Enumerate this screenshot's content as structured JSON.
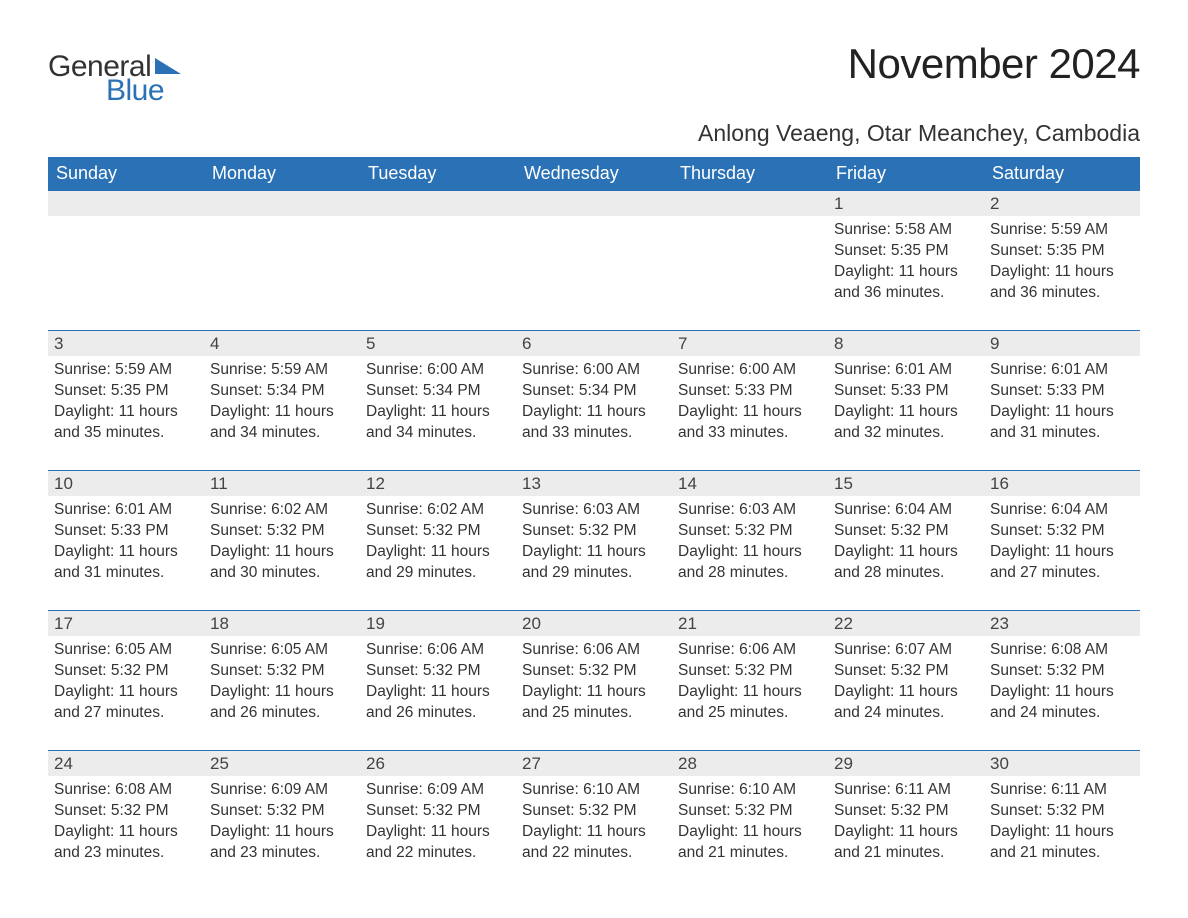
{
  "brand": {
    "word1": "General",
    "word2": "Blue"
  },
  "title": "November 2024",
  "location": "Anlong Veaeng, Otar Meanchey, Cambodia",
  "colors": {
    "header_bg": "#2a72b5",
    "header_text": "#ffffff",
    "daynum_bg": "#ececec",
    "border_top": "#2a72b5",
    "text": "#333333",
    "background": "#ffffff"
  },
  "typography": {
    "title_fontsize": 42,
    "location_fontsize": 23,
    "header_fontsize": 18,
    "daynum_fontsize": 17,
    "body_fontsize": 15.5
  },
  "layout": {
    "columns": 7,
    "rows": 5,
    "week_starts": "Sunday"
  },
  "weekdays": [
    "Sunday",
    "Monday",
    "Tuesday",
    "Wednesday",
    "Thursday",
    "Friday",
    "Saturday"
  ],
  "weeks": [
    [
      {
        "empty": true
      },
      {
        "empty": true
      },
      {
        "empty": true
      },
      {
        "empty": true
      },
      {
        "empty": true
      },
      {
        "n": "1",
        "sunrise": "Sunrise: 5:58 AM",
        "sunset": "Sunset: 5:35 PM",
        "daylight": "Daylight: 11 hours and 36 minutes."
      },
      {
        "n": "2",
        "sunrise": "Sunrise: 5:59 AM",
        "sunset": "Sunset: 5:35 PM",
        "daylight": "Daylight: 11 hours and 36 minutes."
      }
    ],
    [
      {
        "n": "3",
        "sunrise": "Sunrise: 5:59 AM",
        "sunset": "Sunset: 5:35 PM",
        "daylight": "Daylight: 11 hours and 35 minutes."
      },
      {
        "n": "4",
        "sunrise": "Sunrise: 5:59 AM",
        "sunset": "Sunset: 5:34 PM",
        "daylight": "Daylight: 11 hours and 34 minutes."
      },
      {
        "n": "5",
        "sunrise": "Sunrise: 6:00 AM",
        "sunset": "Sunset: 5:34 PM",
        "daylight": "Daylight: 11 hours and 34 minutes."
      },
      {
        "n": "6",
        "sunrise": "Sunrise: 6:00 AM",
        "sunset": "Sunset: 5:34 PM",
        "daylight": "Daylight: 11 hours and 33 minutes."
      },
      {
        "n": "7",
        "sunrise": "Sunrise: 6:00 AM",
        "sunset": "Sunset: 5:33 PM",
        "daylight": "Daylight: 11 hours and 33 minutes."
      },
      {
        "n": "8",
        "sunrise": "Sunrise: 6:01 AM",
        "sunset": "Sunset: 5:33 PM",
        "daylight": "Daylight: 11 hours and 32 minutes."
      },
      {
        "n": "9",
        "sunrise": "Sunrise: 6:01 AM",
        "sunset": "Sunset: 5:33 PM",
        "daylight": "Daylight: 11 hours and 31 minutes."
      }
    ],
    [
      {
        "n": "10",
        "sunrise": "Sunrise: 6:01 AM",
        "sunset": "Sunset: 5:33 PM",
        "daylight": "Daylight: 11 hours and 31 minutes."
      },
      {
        "n": "11",
        "sunrise": "Sunrise: 6:02 AM",
        "sunset": "Sunset: 5:32 PM",
        "daylight": "Daylight: 11 hours and 30 minutes."
      },
      {
        "n": "12",
        "sunrise": "Sunrise: 6:02 AM",
        "sunset": "Sunset: 5:32 PM",
        "daylight": "Daylight: 11 hours and 29 minutes."
      },
      {
        "n": "13",
        "sunrise": "Sunrise: 6:03 AM",
        "sunset": "Sunset: 5:32 PM",
        "daylight": "Daylight: 11 hours and 29 minutes."
      },
      {
        "n": "14",
        "sunrise": "Sunrise: 6:03 AM",
        "sunset": "Sunset: 5:32 PM",
        "daylight": "Daylight: 11 hours and 28 minutes."
      },
      {
        "n": "15",
        "sunrise": "Sunrise: 6:04 AM",
        "sunset": "Sunset: 5:32 PM",
        "daylight": "Daylight: 11 hours and 28 minutes."
      },
      {
        "n": "16",
        "sunrise": "Sunrise: 6:04 AM",
        "sunset": "Sunset: 5:32 PM",
        "daylight": "Daylight: 11 hours and 27 minutes."
      }
    ],
    [
      {
        "n": "17",
        "sunrise": "Sunrise: 6:05 AM",
        "sunset": "Sunset: 5:32 PM",
        "daylight": "Daylight: 11 hours and 27 minutes."
      },
      {
        "n": "18",
        "sunrise": "Sunrise: 6:05 AM",
        "sunset": "Sunset: 5:32 PM",
        "daylight": "Daylight: 11 hours and 26 minutes."
      },
      {
        "n": "19",
        "sunrise": "Sunrise: 6:06 AM",
        "sunset": "Sunset: 5:32 PM",
        "daylight": "Daylight: 11 hours and 26 minutes."
      },
      {
        "n": "20",
        "sunrise": "Sunrise: 6:06 AM",
        "sunset": "Sunset: 5:32 PM",
        "daylight": "Daylight: 11 hours and 25 minutes."
      },
      {
        "n": "21",
        "sunrise": "Sunrise: 6:06 AM",
        "sunset": "Sunset: 5:32 PM",
        "daylight": "Daylight: 11 hours and 25 minutes."
      },
      {
        "n": "22",
        "sunrise": "Sunrise: 6:07 AM",
        "sunset": "Sunset: 5:32 PM",
        "daylight": "Daylight: 11 hours and 24 minutes."
      },
      {
        "n": "23",
        "sunrise": "Sunrise: 6:08 AM",
        "sunset": "Sunset: 5:32 PM",
        "daylight": "Daylight: 11 hours and 24 minutes."
      }
    ],
    [
      {
        "n": "24",
        "sunrise": "Sunrise: 6:08 AM",
        "sunset": "Sunset: 5:32 PM",
        "daylight": "Daylight: 11 hours and 23 minutes."
      },
      {
        "n": "25",
        "sunrise": "Sunrise: 6:09 AM",
        "sunset": "Sunset: 5:32 PM",
        "daylight": "Daylight: 11 hours and 23 minutes."
      },
      {
        "n": "26",
        "sunrise": "Sunrise: 6:09 AM",
        "sunset": "Sunset: 5:32 PM",
        "daylight": "Daylight: 11 hours and 22 minutes."
      },
      {
        "n": "27",
        "sunrise": "Sunrise: 6:10 AM",
        "sunset": "Sunset: 5:32 PM",
        "daylight": "Daylight: 11 hours and 22 minutes."
      },
      {
        "n": "28",
        "sunrise": "Sunrise: 6:10 AM",
        "sunset": "Sunset: 5:32 PM",
        "daylight": "Daylight: 11 hours and 21 minutes."
      },
      {
        "n": "29",
        "sunrise": "Sunrise: 6:11 AM",
        "sunset": "Sunset: 5:32 PM",
        "daylight": "Daylight: 11 hours and 21 minutes."
      },
      {
        "n": "30",
        "sunrise": "Sunrise: 6:11 AM",
        "sunset": "Sunset: 5:32 PM",
        "daylight": "Daylight: 11 hours and 21 minutes."
      }
    ]
  ]
}
